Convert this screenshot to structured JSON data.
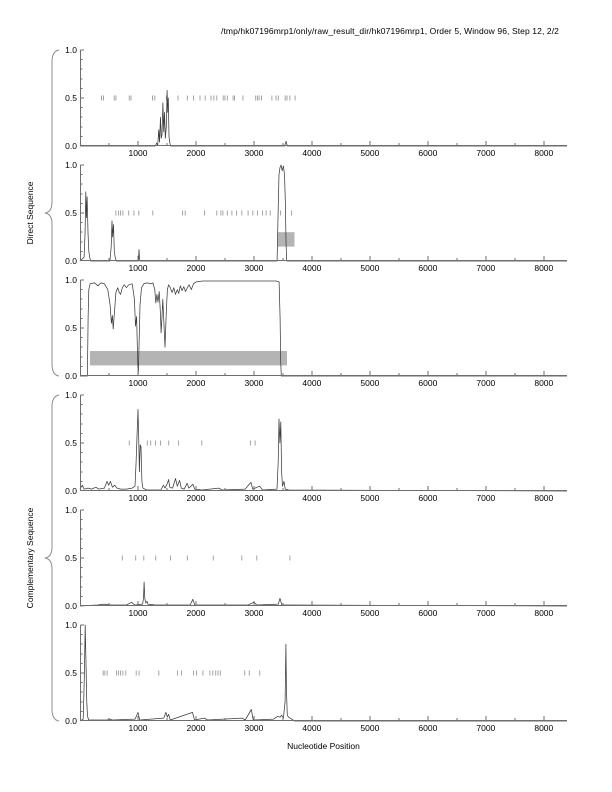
{
  "title": "/tmp/hk07196mrp1/only/raw_result_dir/hk07196mrp1, Order 5, Window 96, Step 12, 2/2",
  "xlabel": "Nucleotide Position",
  "group_labels": {
    "direct": "Direct Sequence",
    "complementary": "Complementary Sequence"
  },
  "axis": {
    "y_tick_labels": [
      "1.0",
      "0.5",
      "0.0"
    ],
    "x_tick_values": [
      1000,
      2000,
      3000,
      4000,
      5000,
      6000,
      7000,
      8000
    ],
    "x_minor_step": 500,
    "x_max": 8400
  },
  "colors": {
    "line": "#3c3c3c",
    "marks": "#9a9a9a",
    "box": "#b4b4b4",
    "axis": "#6e6e6e",
    "brace": "#8c8c8c"
  },
  "chart_data": {
    "type": "line",
    "x_range": [
      0,
      8400
    ],
    "y_range": [
      0,
      1
    ],
    "xlabel": "Nucleotide Position",
    "title": "/tmp/hk07196mrp1/only/raw_result_dir/hk07196mrp1, Order 5, Window 96, Step 12, 2/2",
    "subplots": [
      {
        "name": "direct-frame-1",
        "group": "direct",
        "marks_y": 0.5,
        "box": null,
        "line": [
          [
            0,
            0
          ],
          [
            1300,
            0
          ],
          [
            1320,
            0.03
          ],
          [
            1340,
            0.01
          ],
          [
            1360,
            0.17
          ],
          [
            1372,
            0.04
          ],
          [
            1388,
            0.3
          ],
          [
            1400,
            0.08
          ],
          [
            1415,
            0.12
          ],
          [
            1430,
            0.45
          ],
          [
            1443,
            0.15
          ],
          [
            1458,
            0.35
          ],
          [
            1472,
            0.08
          ],
          [
            1488,
            0.2
          ],
          [
            1503,
            0.58
          ],
          [
            1513,
            0.35
          ],
          [
            1523,
            0.5
          ],
          [
            1535,
            0.1
          ],
          [
            1548,
            0.04
          ],
          [
            1562,
            0
          ],
          [
            3530,
            0
          ],
          [
            3555,
            0.05
          ],
          [
            3575,
            0
          ],
          [
            8400,
            0
          ]
        ],
        "marks": [
          370,
          405,
          590,
          620,
          850,
          880,
          1250,
          1290,
          1490,
          1690,
          1850,
          1960,
          2070,
          2160,
          2260,
          2310,
          2360,
          2470,
          2500,
          2540,
          2640,
          2665,
          2810,
          3030,
          3060,
          3090,
          3130,
          3310,
          3380,
          3420,
          3540,
          3570,
          3620,
          3710
        ]
      },
      {
        "name": "direct-frame-2",
        "group": "direct",
        "marks_y": 0.5,
        "box": {
          "x0": 3410,
          "x1": 3700,
          "y0": 0.15,
          "y1": 0.3
        },
        "line": [
          [
            0,
            0
          ],
          [
            70,
            0.04
          ],
          [
            88,
            0.3
          ],
          [
            100,
            0.72
          ],
          [
            110,
            0.45
          ],
          [
            122,
            0.67
          ],
          [
            138,
            0.3
          ],
          [
            152,
            0.1
          ],
          [
            168,
            0.04
          ],
          [
            185,
            0
          ],
          [
            515,
            0
          ],
          [
            538,
            0.15
          ],
          [
            552,
            0.42
          ],
          [
            563,
            0.25
          ],
          [
            577,
            0.38
          ],
          [
            592,
            0.1
          ],
          [
            608,
            0.04
          ],
          [
            625,
            0
          ],
          [
            1008,
            0
          ],
          [
            1018,
            0.12
          ],
          [
            1030,
            0
          ],
          [
            3400,
            0
          ],
          [
            3418,
            0.55
          ],
          [
            3432,
            0.9
          ],
          [
            3448,
            0.97
          ],
          [
            3468,
            1.0
          ],
          [
            3488,
            0.94
          ],
          [
            3508,
            0.99
          ],
          [
            3528,
            0.9
          ],
          [
            3543,
            0.6
          ],
          [
            3554,
            0.2
          ],
          [
            3565,
            0
          ],
          [
            8400,
            0
          ]
        ],
        "marks": [
          620,
          665,
          700,
          740,
          840,
          930,
          1015,
          1255,
          1770,
          1815,
          2150,
          2360,
          2430,
          2465,
          2540,
          2620,
          2700,
          2790,
          2900,
          2980,
          3060,
          3150,
          3210,
          3280,
          3460,
          3650
        ]
      },
      {
        "name": "direct-frame-3",
        "group": "direct",
        "marks_y": 0.5,
        "box": {
          "x0": 170,
          "x1": 3570,
          "y0": 0.11,
          "y1": 0.26
        },
        "line": [
          [
            0,
            0
          ],
          [
            128,
            0
          ],
          [
            140,
            0.6
          ],
          [
            152,
            0.9
          ],
          [
            175,
            0.96
          ],
          [
            250,
            0.97
          ],
          [
            310,
            0.94
          ],
          [
            360,
            0.97
          ],
          [
            420,
            0.96
          ],
          [
            480,
            0.9
          ],
          [
            520,
            0.74
          ],
          [
            542,
            0.55
          ],
          [
            558,
            0.63
          ],
          [
            572,
            0.49
          ],
          [
            598,
            0.7
          ],
          [
            620,
            0.87
          ],
          [
            650,
            0.92
          ],
          [
            678,
            0.87
          ],
          [
            700,
            0.85
          ],
          [
            730,
            0.92
          ],
          [
            762,
            0.95
          ],
          [
            800,
            0.92
          ],
          [
            840,
            0.95
          ],
          [
            900,
            0.96
          ],
          [
            938,
            0.8
          ],
          [
            958,
            0.52
          ],
          [
            976,
            0.62
          ],
          [
            995,
            0.15
          ],
          [
            1005,
            0.02
          ],
          [
            1018,
            0.3
          ],
          [
            1035,
            0.74
          ],
          [
            1060,
            0.92
          ],
          [
            1100,
            0.96
          ],
          [
            1160,
            0.97
          ],
          [
            1220,
            0.96
          ],
          [
            1258,
            0.97
          ],
          [
            1290,
            0.9
          ],
          [
            1308,
            0.76
          ],
          [
            1326,
            0.85
          ],
          [
            1346,
            0.77
          ],
          [
            1366,
            0.88
          ],
          [
            1386,
            0.66
          ],
          [
            1398,
            0.45
          ],
          [
            1412,
            0.6
          ],
          [
            1428,
            0.8
          ],
          [
            1448,
            0.55
          ],
          [
            1466,
            0.3
          ],
          [
            1478,
            0.5
          ],
          [
            1492,
            0.72
          ],
          [
            1508,
            0.9
          ],
          [
            1528,
            0.95
          ],
          [
            1558,
            0.92
          ],
          [
            1588,
            0.87
          ],
          [
            1618,
            0.92
          ],
          [
            1648,
            0.85
          ],
          [
            1678,
            0.9
          ],
          [
            1702,
            0.86
          ],
          [
            1730,
            0.94
          ],
          [
            1760,
            0.89
          ],
          [
            1790,
            0.93
          ],
          [
            1820,
            0.88
          ],
          [
            1852,
            0.92
          ],
          [
            1882,
            0.95
          ],
          [
            1920,
            0.9
          ],
          [
            1958,
            0.96
          ],
          [
            2000,
            0.98
          ],
          [
            2120,
            0.99
          ],
          [
            3380,
            0.99
          ],
          [
            3435,
            0.98
          ],
          [
            3452,
            0.6
          ],
          [
            3462,
            0.15
          ],
          [
            3472,
            0
          ],
          [
            8400,
            0
          ]
        ],
        "marks": []
      },
      {
        "name": "complementary-frame-1",
        "group": "complementary",
        "marks_y": 0.5,
        "box": null,
        "line": [
          [
            0,
            0.02
          ],
          [
            40,
            0.06
          ],
          [
            70,
            0.02
          ],
          [
            140,
            0.03
          ],
          [
            200,
            0.02
          ],
          [
            275,
            0.04
          ],
          [
            320,
            0.02
          ],
          [
            420,
            0.03
          ],
          [
            465,
            0.1
          ],
          [
            495,
            0.06
          ],
          [
            525,
            0.1
          ],
          [
            558,
            0.04
          ],
          [
            598,
            0.06
          ],
          [
            638,
            0.03
          ],
          [
            700,
            0.02
          ],
          [
            800,
            0.02
          ],
          [
            900,
            0.03
          ],
          [
            948,
            0.05
          ],
          [
            968,
            0.3
          ],
          [
            985,
            0.6
          ],
          [
            1000,
            0.85
          ],
          [
            1013,
            0.55
          ],
          [
            1024,
            0.2
          ],
          [
            1038,
            0.48
          ],
          [
            1052,
            0.46
          ],
          [
            1068,
            0.1
          ],
          [
            1085,
            0.03
          ],
          [
            1150,
            0.01
          ],
          [
            1395,
            0.01
          ],
          [
            1438,
            0.06
          ],
          [
            1468,
            0.03
          ],
          [
            1508,
            0.08
          ],
          [
            1528,
            0.12
          ],
          [
            1548,
            0.04
          ],
          [
            1598,
            0.03
          ],
          [
            1648,
            0.13
          ],
          [
            1678,
            0.05
          ],
          [
            1718,
            0.11
          ],
          [
            1748,
            0.03
          ],
          [
            1798,
            0.02
          ],
          [
            1848,
            0.08
          ],
          [
            1878,
            0.03
          ],
          [
            1948,
            0.07
          ],
          [
            1978,
            0.02
          ],
          [
            2100,
            0.01
          ],
          [
            2395,
            0.03
          ],
          [
            2448,
            0.01
          ],
          [
            2848,
            0.02
          ],
          [
            2948,
            0.09
          ],
          [
            2978,
            0.02
          ],
          [
            3098,
            0.05
          ],
          [
            3148,
            0.01
          ],
          [
            3398,
            0.02
          ],
          [
            3418,
            0.3
          ],
          [
            3433,
            0.75
          ],
          [
            3448,
            0.5
          ],
          [
            3463,
            0.72
          ],
          [
            3478,
            0.2
          ],
          [
            3493,
            0.05
          ],
          [
            3518,
            0.1
          ],
          [
            3540,
            0.02
          ],
          [
            3600,
            0.01
          ],
          [
            8400,
            0
          ]
        ],
        "marks": [
          850,
          1160,
          1220,
          1300,
          1390,
          1530,
          1700,
          2100,
          2940,
          3020
        ]
      },
      {
        "name": "complementary-frame-2",
        "group": "complementary",
        "marks_y": 0.5,
        "box": null,
        "line": [
          [
            0,
            0
          ],
          [
            300,
            0.01
          ],
          [
            420,
            0.02
          ],
          [
            520,
            0.01
          ],
          [
            800,
            0.01
          ],
          [
            890,
            0.04
          ],
          [
            940,
            0.01
          ],
          [
            1080,
            0.02
          ],
          [
            1095,
            0.08
          ],
          [
            1105,
            0.25
          ],
          [
            1118,
            0.08
          ],
          [
            1135,
            0.03
          ],
          [
            1155,
            0.05
          ],
          [
            1170,
            0.02
          ],
          [
            1300,
            0.01
          ],
          [
            1900,
            0.01
          ],
          [
            1945,
            0.07
          ],
          [
            1980,
            0.01
          ],
          [
            2400,
            0.01
          ],
          [
            2900,
            0.01
          ],
          [
            3000,
            0.04
          ],
          [
            3050,
            0.01
          ],
          [
            3420,
            0.02
          ],
          [
            3450,
            0.08
          ],
          [
            3480,
            0.01
          ],
          [
            3600,
            0.01
          ],
          [
            8400,
            0
          ]
        ],
        "marks": [
          730,
          960,
          1100,
          1305,
          1560,
          1850,
          2300,
          2790,
          3050,
          3620
        ]
      },
      {
        "name": "complementary-frame-3",
        "group": "complementary",
        "marks_y": 0.5,
        "box": null,
        "line": [
          [
            0,
            0
          ],
          [
            55,
            0.02
          ],
          [
            75,
            0.45
          ],
          [
            90,
            1.0
          ],
          [
            103,
            0.6
          ],
          [
            115,
            0.22
          ],
          [
            130,
            0.05
          ],
          [
            150,
            0.01
          ],
          [
            470,
            0.01
          ],
          [
            510,
            0.02
          ],
          [
            560,
            0.01
          ],
          [
            950,
            0.02
          ],
          [
            1000,
            0.09
          ],
          [
            1030,
            0.01
          ],
          [
            1445,
            0.03
          ],
          [
            1482,
            0.09
          ],
          [
            1505,
            0.04
          ],
          [
            1528,
            0.07
          ],
          [
            1558,
            0.01
          ],
          [
            1940,
            0.09
          ],
          [
            1975,
            0.01
          ],
          [
            2145,
            0.03
          ],
          [
            2200,
            0.01
          ],
          [
            2795,
            0.03
          ],
          [
            2850,
            0.01
          ],
          [
            2955,
            0.12
          ],
          [
            2988,
            0.01
          ],
          [
            3340,
            0.02
          ],
          [
            3415,
            0.05
          ],
          [
            3448,
            0.04
          ],
          [
            3478,
            0.06
          ],
          [
            3508,
            0.03
          ],
          [
            3538,
            0.2
          ],
          [
            3552,
            0.8
          ],
          [
            3562,
            0.3
          ],
          [
            3575,
            0.06
          ],
          [
            3598,
            0.04
          ],
          [
            3650,
            0.02
          ],
          [
            3700,
            0
          ],
          [
            8400,
            0
          ]
        ],
        "marks": [
          400,
          430,
          470,
          630,
          665,
          700,
          740,
          790,
          970,
          1020,
          1360,
          1680,
          1750,
          1960,
          2010,
          2120,
          2240,
          2290,
          2340,
          2380,
          2420,
          2840,
          2920,
          3100
        ]
      }
    ]
  }
}
